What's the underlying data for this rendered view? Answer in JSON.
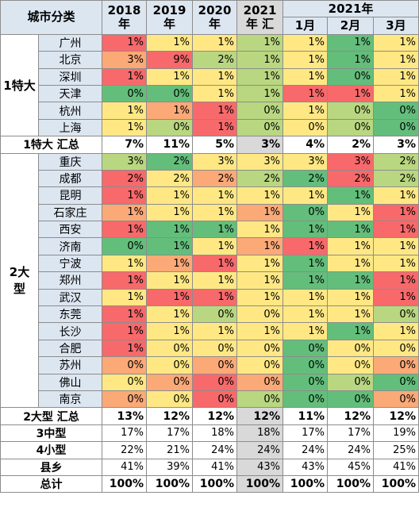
{
  "header": {
    "category": "城市分类",
    "years": [
      "2018\n年",
      "2019\n年",
      "2020\n年",
      "2021\n年 汇"
    ],
    "group_2021": "2021年",
    "months": [
      "1月",
      "2月",
      "3月"
    ]
  },
  "groups": [
    {
      "label": "1特大",
      "rows": [
        {
          "city": "广州",
          "values": [
            "1%",
            "1%",
            "1%",
            "1%",
            "1%",
            "1%",
            "1%"
          ],
          "colors": [
            "#f8696b",
            "#ffe884",
            "#ffe884",
            "#b9d780",
            "#ffe884",
            "#63be7b",
            "#ffe884"
          ]
        },
        {
          "city": "北京",
          "values": [
            "3%",
            "9%",
            "2%",
            "1%",
            "1%",
            "1%",
            "1%"
          ],
          "colors": [
            "#fba977",
            "#f8696b",
            "#b9d780",
            "#b9d780",
            "#ffe884",
            "#63be7b",
            "#ffe884"
          ]
        },
        {
          "city": "深圳",
          "values": [
            "1%",
            "1%",
            "1%",
            "1%",
            "1%",
            "0%",
            "1%"
          ],
          "colors": [
            "#f8696b",
            "#ffe884",
            "#ffe884",
            "#b9d780",
            "#ffe884",
            "#63be7b",
            "#ffe884"
          ]
        },
        {
          "city": "天津",
          "values": [
            "0%",
            "0%",
            "1%",
            "1%",
            "1%",
            "1%",
            "1%"
          ],
          "colors": [
            "#63be7b",
            "#63be7b",
            "#ffe884",
            "#b9d780",
            "#f8696b",
            "#f8696b",
            "#ffe884"
          ]
        },
        {
          "city": "杭州",
          "values": [
            "1%",
            "1%",
            "1%",
            "0%",
            "1%",
            "0%",
            "0%"
          ],
          "colors": [
            "#ffe884",
            "#fba977",
            "#f8696b",
            "#b9d780",
            "#ffe884",
            "#b9d780",
            "#63be7b"
          ]
        },
        {
          "city": "上海",
          "values": [
            "1%",
            "0%",
            "1%",
            "0%",
            "0%",
            "0%",
            "0%"
          ],
          "colors": [
            "#ffe884",
            "#b9d780",
            "#f8696b",
            "#b9d780",
            "#ffe884",
            "#b9d780",
            "#63be7b"
          ]
        }
      ],
      "total": {
        "label": "1特大 汇总",
        "values": [
          "7%",
          "11%",
          "5%",
          "3%",
          "4%",
          "2%",
          "3%"
        ]
      }
    },
    {
      "label": "2大\n型",
      "rows": [
        {
          "city": "重庆",
          "values": [
            "3%",
            "2%",
            "3%",
            "3%",
            "3%",
            "3%",
            "2%"
          ],
          "colors": [
            "#b9d780",
            "#63be7b",
            "#ffe884",
            "#ffe884",
            "#ffe884",
            "#f8696b",
            "#b9d780"
          ]
        },
        {
          "city": "成都",
          "values": [
            "2%",
            "2%",
            "2%",
            "2%",
            "2%",
            "2%",
            "2%"
          ],
          "colors": [
            "#f8696b",
            "#ffe884",
            "#fba977",
            "#b9d780",
            "#63be7b",
            "#f8696b",
            "#b9d780"
          ]
        },
        {
          "city": "昆明",
          "values": [
            "1%",
            "1%",
            "1%",
            "1%",
            "1%",
            "1%",
            "1%"
          ],
          "colors": [
            "#f8696b",
            "#ffe884",
            "#ffe884",
            "#ffe884",
            "#ffe884",
            "#63be7b",
            "#ffe884"
          ]
        },
        {
          "city": "石家庄",
          "values": [
            "1%",
            "1%",
            "1%",
            "1%",
            "0%",
            "1%",
            "1%"
          ],
          "colors": [
            "#fba977",
            "#ffe884",
            "#ffe884",
            "#fba977",
            "#63be7b",
            "#ffe884",
            "#f8696b"
          ]
        },
        {
          "city": "西安",
          "values": [
            "1%",
            "1%",
            "1%",
            "1%",
            "1%",
            "1%",
            "1%"
          ],
          "colors": [
            "#f8696b",
            "#63be7b",
            "#63be7b",
            "#ffe884",
            "#63be7b",
            "#63be7b",
            "#f8696b"
          ]
        },
        {
          "city": "济南",
          "values": [
            "0%",
            "1%",
            "1%",
            "1%",
            "1%",
            "1%",
            "1%"
          ],
          "colors": [
            "#63be7b",
            "#63be7b",
            "#ffe884",
            "#fba977",
            "#f8696b",
            "#ffe884",
            "#ffe884"
          ]
        },
        {
          "city": "宁波",
          "values": [
            "1%",
            "1%",
            "1%",
            "1%",
            "1%",
            "1%",
            "1%"
          ],
          "colors": [
            "#ffe884",
            "#fba977",
            "#f8696b",
            "#ffe884",
            "#63be7b",
            "#ffe884",
            "#ffe884"
          ]
        },
        {
          "city": "郑州",
          "values": [
            "1%",
            "1%",
            "1%",
            "1%",
            "1%",
            "1%",
            "1%"
          ],
          "colors": [
            "#f8696b",
            "#ffe884",
            "#ffe884",
            "#ffe884",
            "#63be7b",
            "#63be7b",
            "#f8696b"
          ]
        },
        {
          "city": "武汉",
          "values": [
            "1%",
            "1%",
            "1%",
            "1%",
            "1%",
            "1%",
            "1%"
          ],
          "colors": [
            "#ffe884",
            "#f8696b",
            "#f8696b",
            "#ffe884",
            "#ffe884",
            "#ffe884",
            "#f8696b"
          ]
        },
        {
          "city": "东莞",
          "values": [
            "1%",
            "1%",
            "0%",
            "0%",
            "1%",
            "1%",
            "0%"
          ],
          "colors": [
            "#f8696b",
            "#ffe884",
            "#b9d780",
            "#ffe884",
            "#ffe884",
            "#ffe884",
            "#b9d780"
          ]
        },
        {
          "city": "长沙",
          "values": [
            "1%",
            "1%",
            "1%",
            "1%",
            "1%",
            "1%",
            "1%"
          ],
          "colors": [
            "#f8696b",
            "#ffe884",
            "#ffe884",
            "#ffe884",
            "#ffe884",
            "#63be7b",
            "#ffe884"
          ]
        },
        {
          "city": "合肥",
          "values": [
            "1%",
            "0%",
            "0%",
            "0%",
            "0%",
            "0%",
            "0%"
          ],
          "colors": [
            "#f8696b",
            "#ffe884",
            "#ffe884",
            "#ffe884",
            "#63be7b",
            "#ffe884",
            "#ffe884"
          ]
        },
        {
          "city": "苏州",
          "values": [
            "0%",
            "0%",
            "0%",
            "0%",
            "0%",
            "0%",
            "0%"
          ],
          "colors": [
            "#fba977",
            "#ffe884",
            "#fba977",
            "#ffe884",
            "#63be7b",
            "#ffe884",
            "#fba977"
          ]
        },
        {
          "city": "佛山",
          "values": [
            "0%",
            "0%",
            "0%",
            "0%",
            "0%",
            "0%",
            "0%"
          ],
          "colors": [
            "#ffe884",
            "#fba977",
            "#f8696b",
            "#fba977",
            "#63be7b",
            "#b9d780",
            "#63be7b"
          ]
        },
        {
          "city": "南京",
          "values": [
            "0%",
            "0%",
            "0%",
            "0%",
            "0%",
            "0%",
            "0%"
          ],
          "colors": [
            "#fba977",
            "#ffe884",
            "#f8696b",
            "#b9d780",
            "#63be7b",
            "#63be7b",
            "#fba977"
          ]
        }
      ],
      "total": {
        "label": "2大型 汇总",
        "values": [
          "13%",
          "12%",
          "12%",
          "12%",
          "11%",
          "12%",
          "12%"
        ]
      }
    }
  ],
  "summary_rows": [
    {
      "label": "3中型",
      "values": [
        "17%",
        "17%",
        "18%",
        "18%",
        "17%",
        "17%",
        "19%"
      ]
    },
    {
      "label": "4小型",
      "values": [
        "22%",
        "21%",
        "24%",
        "24%",
        "24%",
        "24%",
        "25%"
      ]
    },
    {
      "label": "县乡",
      "values": [
        "41%",
        "39%",
        "41%",
        "43%",
        "43%",
        "45%",
        "41%"
      ]
    },
    {
      "label": "总计",
      "values": [
        "100%",
        "100%",
        "100%",
        "100%",
        "100%",
        "100%",
        "100%"
      ],
      "bold": true
    }
  ]
}
